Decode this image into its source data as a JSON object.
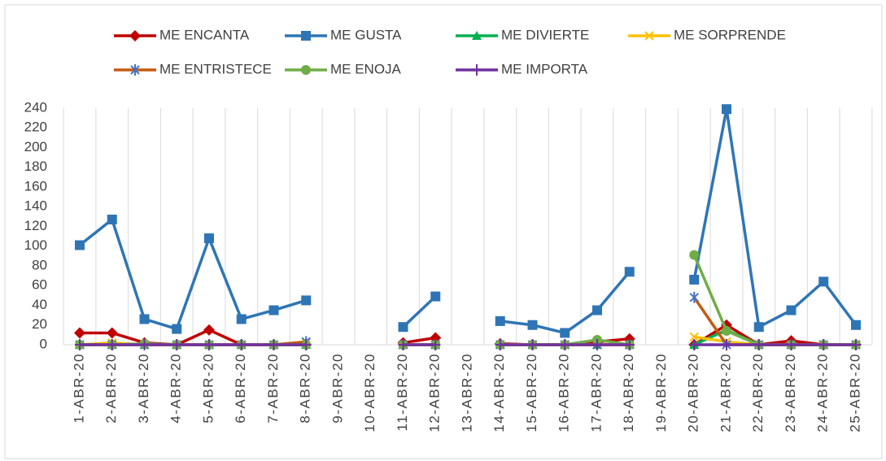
{
  "chart_data": {
    "type": "line",
    "categories": [
      "1-ABR-20",
      "2-ABR-20",
      "3-ABR-20",
      "4-ABR-20",
      "5-ABR-20",
      "6-ABR-20",
      "7-ABR-20",
      "8-ABR-20",
      "9-ABR-20",
      "10-ABR-20",
      "11-ABR-20",
      "12-ABR-20",
      "13-ABR-20",
      "14-ABR-20",
      "15-ABR-20",
      "16-ABR-20",
      "17-ABR-20",
      "18-ABR-20",
      "19-ABR-20",
      "20-ABR-20",
      "21-ABR-20",
      "22-ABR-20",
      "23-ABR-20",
      "24-ABR-20",
      "25-ABR-20"
    ],
    "series": [
      {
        "name": "ME ENCANTA",
        "color": "#c00000",
        "marker": "diamond",
        "values": [
          12,
          12,
          2,
          0,
          15,
          0,
          0,
          0,
          null,
          null,
          2,
          7,
          null,
          1,
          0,
          0,
          3,
          6,
          null,
          0,
          20,
          0,
          4,
          0,
          0
        ]
      },
      {
        "name": "ME GUSTA",
        "color": "#2e75b6",
        "marker": "square",
        "values": [
          101,
          127,
          26,
          16,
          108,
          26,
          35,
          45,
          null,
          null,
          18,
          49,
          null,
          24,
          20,
          12,
          35,
          74,
          null,
          66,
          239,
          18,
          35,
          64,
          20
        ]
      },
      {
        "name": "ME DIVIERTE",
        "color": "#00b050",
        "marker": "triangle",
        "values": [
          0,
          0,
          0,
          0,
          0,
          0,
          0,
          0,
          null,
          null,
          0,
          0,
          null,
          0,
          0,
          0,
          0,
          0,
          null,
          0,
          15,
          0,
          0,
          0,
          0
        ]
      },
      {
        "name": "ME SORPRENDE",
        "color": "#ffc000",
        "marker": "x",
        "values": [
          0,
          2,
          0,
          0,
          0,
          0,
          0,
          2,
          null,
          null,
          0,
          0,
          null,
          0,
          0,
          0,
          0,
          0,
          null,
          8,
          3,
          0,
          0,
          0,
          0
        ]
      },
      {
        "name": "ME ENTRISTECE",
        "color": "#c55a11",
        "marker": "asterisk",
        "values": [
          0,
          0,
          0,
          0,
          0,
          0,
          0,
          3,
          null,
          null,
          0,
          0,
          null,
          0,
          0,
          0,
          0,
          0,
          null,
          48,
          0,
          0,
          0,
          0,
          0
        ]
      },
      {
        "name": "ME ENOJA",
        "color": "#70ad47",
        "marker": "circle",
        "values": [
          0,
          0,
          1,
          0,
          0,
          0,
          0,
          0,
          null,
          null,
          0,
          0,
          null,
          0,
          0,
          0,
          5,
          0,
          null,
          91,
          14,
          0,
          0,
          0,
          0
        ]
      },
      {
        "name": "ME IMPORTA",
        "color": "#7030a0",
        "marker": "plus",
        "values": [
          0,
          0,
          0,
          0,
          0,
          0,
          0,
          0,
          null,
          null,
          0,
          0,
          null,
          0,
          0,
          0,
          0,
          0,
          null,
          0,
          0,
          0,
          0,
          0,
          0
        ]
      }
    ],
    "ylim": [
      0,
      240
    ],
    "yticks": [
      0,
      20,
      40,
      60,
      80,
      100,
      120,
      140,
      160,
      180,
      200,
      220,
      240
    ],
    "grid": "x",
    "legend": "top"
  }
}
